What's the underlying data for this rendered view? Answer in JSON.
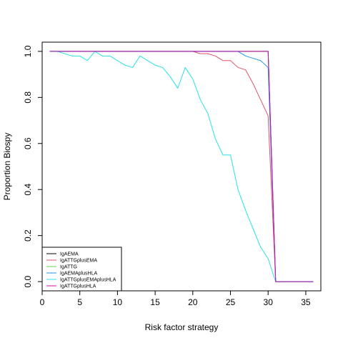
{
  "chart_data": {
    "type": "line",
    "title": "",
    "xlabel": "Risk factor strategy",
    "ylabel": "Proportion Biospy",
    "xlim": [
      0,
      37
    ],
    "ylim": [
      -0.04,
      1.04
    ],
    "xticks": [
      0,
      5,
      10,
      15,
      20,
      25,
      30,
      35
    ],
    "yticks": [
      0.0,
      0.2,
      0.4,
      0.6,
      0.8,
      1.0
    ],
    "ytick_labels": [
      "0.0",
      "0.2",
      "0.4",
      "0.6",
      "0.8",
      "1.0"
    ],
    "grid": false,
    "legend_position": "bottom-left",
    "series": [
      {
        "name": "IgAEMA",
        "color": "#000000",
        "x": [
          1,
          30,
          31,
          36
        ],
        "y": [
          1.0,
          1.0,
          0.0,
          0.0
        ]
      },
      {
        "name": "IgATTGplusEMA",
        "color": "#DF536B",
        "x": [
          1,
          20,
          21,
          22,
          23,
          24,
          25,
          26,
          27,
          28,
          29,
          30,
          31,
          36
        ],
        "y": [
          1.0,
          1.0,
          0.99,
          0.99,
          0.98,
          0.96,
          0.96,
          0.93,
          0.92,
          0.86,
          0.79,
          0.72,
          0.0,
          0.0
        ]
      },
      {
        "name": "IgATTG",
        "color": "#61D04F",
        "x": [
          1,
          30,
          31,
          36
        ],
        "y": [
          1.0,
          1.0,
          0.0,
          0.0
        ]
      },
      {
        "name": "IgAEMAplusHLA",
        "color": "#2297E6",
        "x": [
          1,
          26,
          27,
          28,
          29,
          30,
          31,
          36
        ],
        "y": [
          1.0,
          1.0,
          0.98,
          0.97,
          0.96,
          0.93,
          0.0,
          0.0
        ]
      },
      {
        "name": "IgATTGplusEMAplusHLA",
        "color": "#28E2E5",
        "x": [
          1,
          2,
          3,
          4,
          5,
          6,
          7,
          8,
          9,
          10,
          11,
          12,
          13,
          14,
          15,
          16,
          17,
          18,
          19,
          20,
          21,
          22,
          23,
          24,
          25,
          26,
          27,
          28,
          29,
          30,
          31,
          36
        ],
        "y": [
          1.0,
          1.0,
          0.99,
          0.98,
          0.98,
          0.96,
          1.0,
          0.98,
          0.98,
          0.96,
          0.94,
          0.93,
          0.98,
          0.96,
          0.94,
          0.93,
          0.89,
          0.84,
          0.93,
          0.88,
          0.79,
          0.73,
          0.62,
          0.55,
          0.55,
          0.4,
          0.31,
          0.23,
          0.15,
          0.1,
          0.0,
          0.0
        ]
      },
      {
        "name": "IgATTGplusHLA",
        "color": "#CD0BBC",
        "x": [
          1,
          30,
          31,
          36
        ],
        "y": [
          1.0,
          1.0,
          0.0,
          0.0
        ]
      }
    ]
  }
}
